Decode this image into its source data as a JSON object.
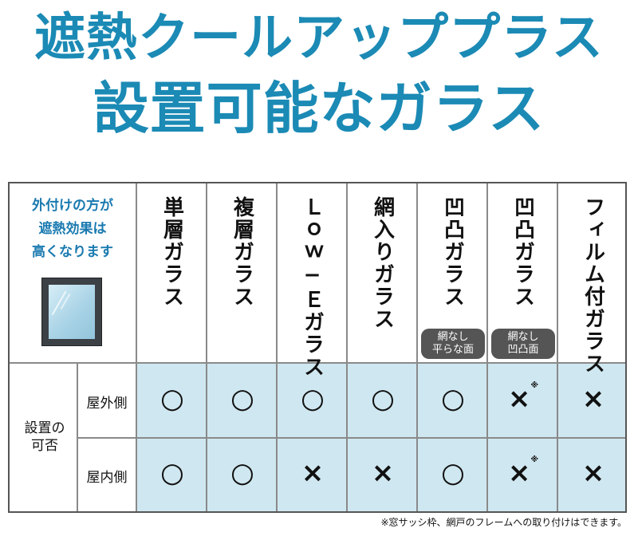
{
  "title": {
    "line1": "遮熱クールアッププラス",
    "line2": "設置可能なガラス"
  },
  "table": {
    "note": [
      "外付けの方が",
      "遮熱効果は",
      "高くなります"
    ],
    "columns": [
      {
        "label": "単層ガラス",
        "badge": ""
      },
      {
        "label": "複層ガラス",
        "badge": ""
      },
      {
        "label": "Ｌｏｗ−Ｅガラス",
        "badge": ""
      },
      {
        "label": "網入りガラス",
        "badge": ""
      },
      {
        "label": "凹凸ガラス",
        "badge": "網なし\n平らな面"
      },
      {
        "label": "凹凸ガラス",
        "badge": "網なし\n凹凸面"
      },
      {
        "label": "フィルム付ガラス",
        "badge": ""
      }
    ],
    "group_label": "設置の\n可否",
    "rows": [
      {
        "label": "屋外側",
        "marks": [
          "○",
          "○",
          "○",
          "○",
          "○",
          "×",
          "×"
        ],
        "note_mark_index": 5
      },
      {
        "label": "屋内側",
        "marks": [
          "○",
          "○",
          "×",
          "×",
          "○",
          "×",
          "×"
        ],
        "note_mark_index": 5
      }
    ],
    "note_marker": "※",
    "footnote": "※窓サッシ枠、網戸のフレームへの取り付けはできます。"
  },
  "colors": {
    "title": "#1b8ab5",
    "cell_bg": "#cfe7f0",
    "note_text": "#1a7ab0",
    "badge_bg": "#555555"
  }
}
